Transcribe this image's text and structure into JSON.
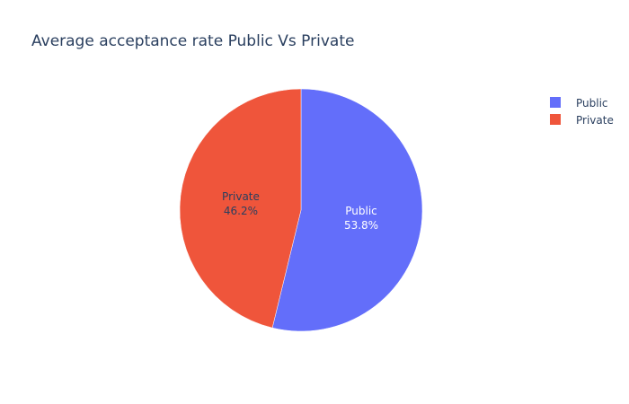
{
  "chart_data": {
    "type": "pie",
    "title": "Average acceptance rate Public Vs Private",
    "labels": [
      "Public",
      "Private"
    ],
    "values": [
      53.8,
      46.2
    ],
    "text_labels": [
      "53.8%",
      "46.2%"
    ],
    "colors": [
      "#636efa",
      "#ef553b"
    ],
    "label_colors": [
      "#ffffff",
      "#2a3f5f"
    ],
    "legend_position": "top-right",
    "start_angle": "12 o'clock",
    "direction": "clockwise"
  }
}
